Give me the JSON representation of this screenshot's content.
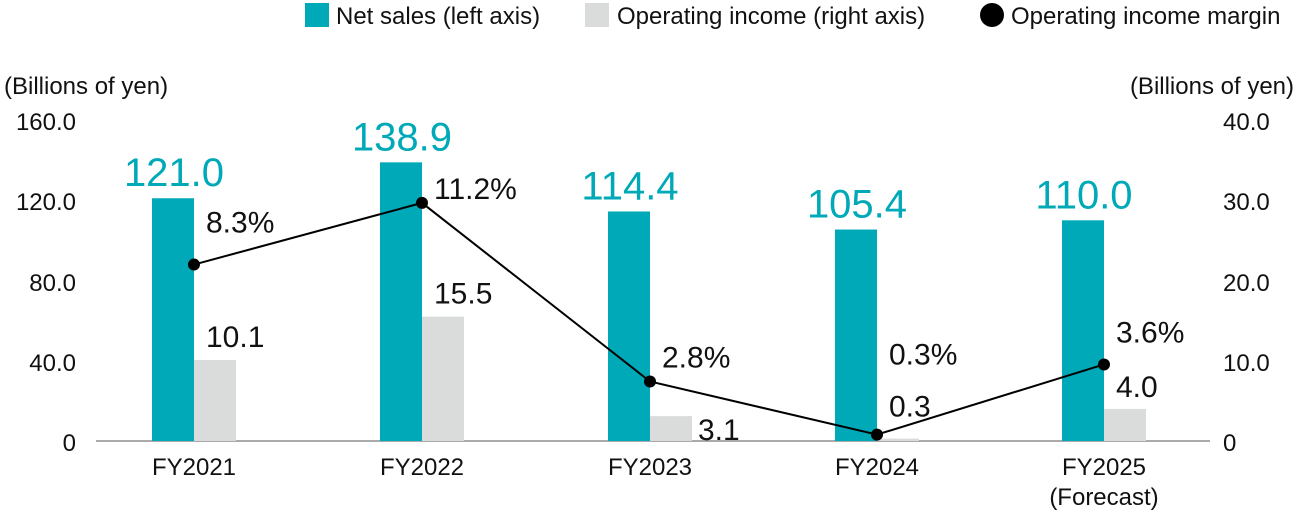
{
  "chart_data": {
    "type": "bar",
    "categories": [
      "FY2021",
      "FY2022",
      "FY2023",
      "FY2024",
      "FY2025"
    ],
    "category_sublabels": [
      "",
      "",
      "",
      "",
      "(Forecast)"
    ],
    "series": [
      {
        "name": "Net sales (left axis)",
        "kind": "bar",
        "axis": "left",
        "color": "#00A9B7",
        "values": [
          121.0,
          138.9,
          114.4,
          105.4,
          110.0
        ],
        "labels": [
          "121.0",
          "138.9",
          "114.4",
          "105.4",
          "110.0"
        ]
      },
      {
        "name": "Operating income (right axis)",
        "kind": "bar",
        "axis": "right",
        "color": "#DADBDB",
        "values": [
          10.1,
          15.5,
          3.1,
          0.3,
          4.0
        ],
        "labels": [
          "10.1",
          "15.5",
          "3.1",
          "0.3",
          "4.0"
        ]
      },
      {
        "name": "Operating income margin",
        "kind": "line",
        "axis": "right",
        "color": "#000000",
        "values": [
          8.3,
          11.2,
          2.8,
          0.3,
          3.6
        ],
        "labels": [
          "8.3%",
          "11.2%",
          "2.8%",
          "0.3%",
          "3.6%"
        ]
      }
    ],
    "left_axis": {
      "unit": "(Billions of yen)",
      "ylim": [
        0,
        160
      ],
      "ticks": [
        "160.0",
        "120.0",
        "80.0",
        "40.0",
        "0"
      ]
    },
    "right_axis": {
      "unit": "(Billions of yen)",
      "ylim": [
        0,
        40
      ],
      "ticks": [
        "40.0",
        "30.0",
        "20.0",
        "10.0",
        "0"
      ]
    },
    "legend_position": "top-right",
    "grid": false
  }
}
